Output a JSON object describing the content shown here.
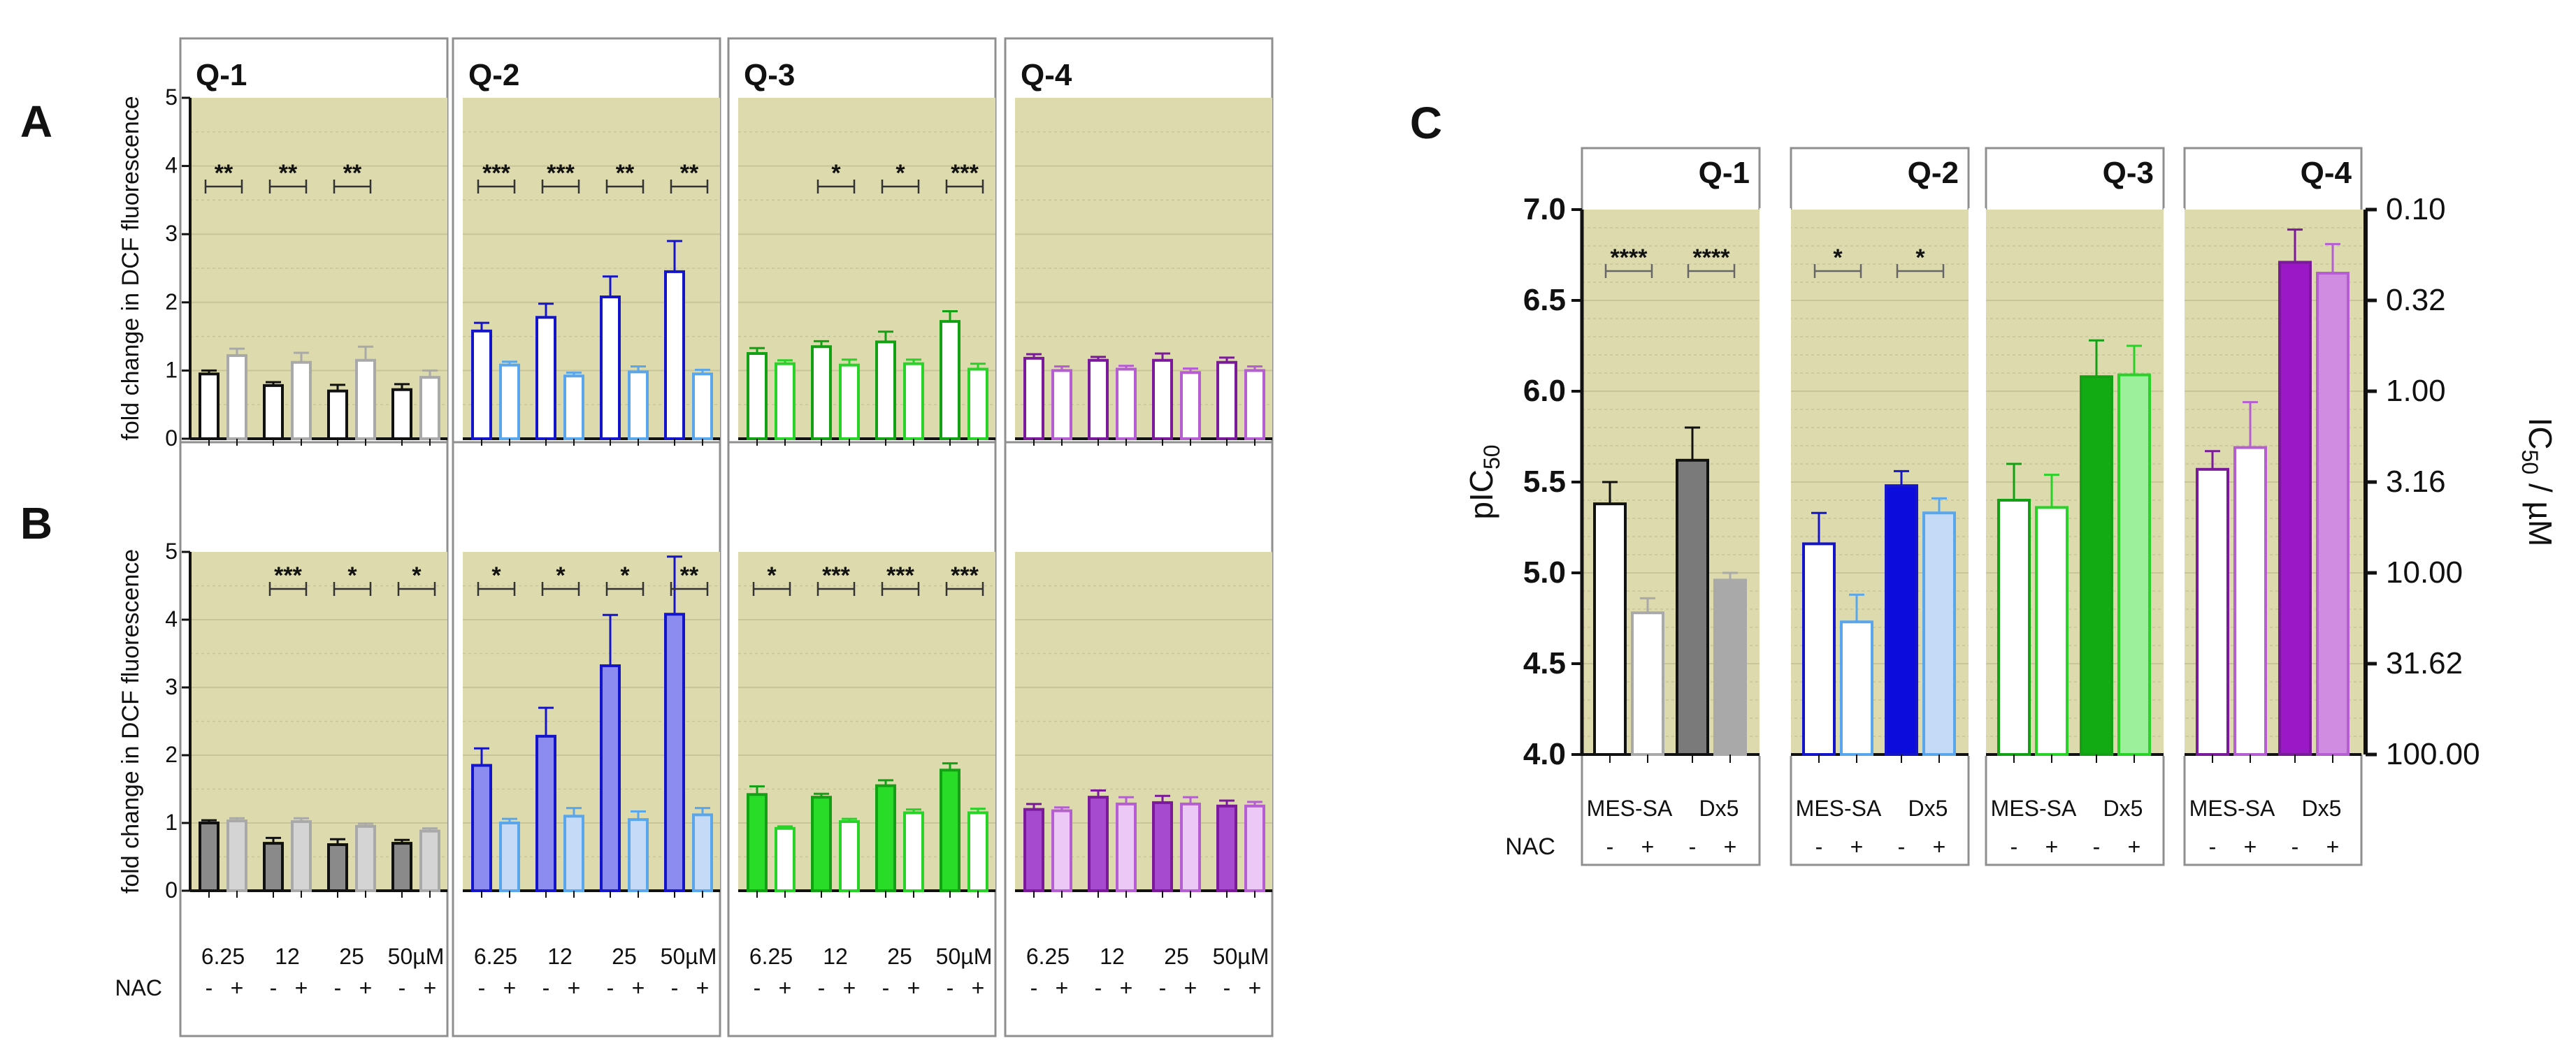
{
  "figure": {
    "panel_labels": [
      "A",
      "B",
      "C"
    ],
    "colors": {
      "background": "#dddbae",
      "grid": "#c9c49a",
      "frame": "#8f8f8f",
      "Q-1": {
        "base": "#111111",
        "nac": "#a9a9a9",
        "fillB_base": "#8a8a8a",
        "fillB_nac": "#d4d4d4",
        "fillC_base": "#7a7a7a",
        "fillC_nac": "#a9a9a9"
      },
      "Q-2": {
        "base": "#1414c8",
        "nac": "#5aa6ec",
        "fillB_base": "#8c8cf0",
        "fillB_nac": "#c4daf6",
        "fillC_base": "#0c0cdc",
        "fillC_nac": "#c4daf6"
      },
      "Q-3": {
        "base": "#14a014",
        "nac": "#28d228",
        "fillB_base": "#28dc28",
        "fillB_nac": "#ffffff",
        "fillC_base": "#13ab13",
        "fillC_nac": "#9cf09c"
      },
      "Q-4": {
        "base": "#7a1a9a",
        "nac": "#b45ed2",
        "fillB_base": "#a64ad0",
        "fillB_nac": "#ecc8f6",
        "fillC_base": "#9b18c6",
        "fillC_nac": "#d08ce0"
      }
    }
  },
  "chart_data": [
    {
      "id": "A",
      "type": "bar",
      "ylabel": "fold change in  DCF fluorescence",
      "ylim": [
        0,
        5
      ],
      "yticks": [
        "0",
        "1",
        "2",
        "3",
        "4",
        "5"
      ],
      "groups": [
        "6.25",
        "12",
        "25",
        "50µM"
      ],
      "nac_row_label": "NAC",
      "nac_signs": [
        "-",
        "+"
      ],
      "panels": [
        {
          "title": "Q-1",
          "values": [
            [
              0.95,
              1.22
            ],
            [
              0.78,
              1.12
            ],
            [
              0.7,
              1.15
            ],
            [
              0.72,
              0.9
            ]
          ],
          "errors": [
            [
              0.05,
              0.1
            ],
            [
              0.05,
              0.14
            ],
            [
              0.09,
              0.2
            ],
            [
              0.08,
              0.1
            ]
          ],
          "sig": [
            "**",
            "**",
            "**",
            ""
          ]
        },
        {
          "title": "Q-2",
          "values": [
            [
              1.58,
              1.08
            ],
            [
              1.78,
              0.92
            ],
            [
              2.08,
              0.98
            ],
            [
              2.45,
              0.95
            ]
          ],
          "errors": [
            [
              0.12,
              0.05
            ],
            [
              0.2,
              0.05
            ],
            [
              0.3,
              0.08
            ],
            [
              0.45,
              0.06
            ]
          ],
          "sig": [
            "***",
            "***",
            "**",
            "**"
          ]
        },
        {
          "title": "Q-3",
          "values": [
            [
              1.25,
              1.1
            ],
            [
              1.35,
              1.08
            ],
            [
              1.42,
              1.1
            ],
            [
              1.72,
              1.02
            ]
          ],
          "errors": [
            [
              0.08,
              0.05
            ],
            [
              0.08,
              0.08
            ],
            [
              0.15,
              0.06
            ],
            [
              0.15,
              0.08
            ]
          ],
          "sig": [
            "",
            "*",
            "*",
            "***"
          ]
        },
        {
          "title": "Q-4",
          "values": [
            [
              1.18,
              1.0
            ],
            [
              1.15,
              1.02
            ],
            [
              1.15,
              0.97
            ],
            [
              1.12,
              1.0
            ]
          ],
          "errors": [
            [
              0.06,
              0.06
            ],
            [
              0.05,
              0.05
            ],
            [
              0.1,
              0.06
            ],
            [
              0.07,
              0.06
            ]
          ],
          "sig": [
            "",
            "",
            "",
            ""
          ]
        }
      ]
    },
    {
      "id": "B",
      "type": "bar",
      "ylabel": "fold change in  DCF fluorescence",
      "ylim": [
        0,
        5
      ],
      "yticks": [
        "0",
        "1",
        "2",
        "3",
        "4",
        "5"
      ],
      "groups": [
        "6.25",
        "12",
        "25",
        "50µM"
      ],
      "nac_row_label": "NAC",
      "nac_signs": [
        "-",
        "+"
      ],
      "panels": [
        {
          "title": "Q-1",
          "values": [
            [
              1.0,
              1.03
            ],
            [
              0.7,
              1.02
            ],
            [
              0.68,
              0.95
            ],
            [
              0.7,
              0.88
            ]
          ],
          "errors": [
            [
              0.04,
              0.04
            ],
            [
              0.08,
              0.05
            ],
            [
              0.08,
              0.04
            ],
            [
              0.05,
              0.04
            ]
          ],
          "sig": [
            "",
            "***",
            "*",
            "*"
          ]
        },
        {
          "title": "Q-2",
          "values": [
            [
              1.85,
              1.0
            ],
            [
              2.28,
              1.1
            ],
            [
              3.32,
              1.05
            ],
            [
              4.08,
              1.12
            ]
          ],
          "errors": [
            [
              0.25,
              0.06
            ],
            [
              0.42,
              0.12
            ],
            [
              0.75,
              0.12
            ],
            [
              0.85,
              0.1
            ]
          ],
          "sig": [
            "*",
            "*",
            "*",
            "**"
          ]
        },
        {
          "title": "Q-3",
          "values": [
            [
              1.42,
              0.92
            ],
            [
              1.38,
              1.02
            ],
            [
              1.55,
              1.15
            ],
            [
              1.78,
              1.15
            ]
          ],
          "errors": [
            [
              0.12,
              0.03
            ],
            [
              0.05,
              0.04
            ],
            [
              0.08,
              0.05
            ],
            [
              0.1,
              0.06
            ]
          ],
          "sig": [
            "*",
            "***",
            "***",
            "***"
          ]
        },
        {
          "title": "Q-4",
          "values": [
            [
              1.2,
              1.18
            ],
            [
              1.38,
              1.28
            ],
            [
              1.3,
              1.28
            ],
            [
              1.25,
              1.25
            ]
          ],
          "errors": [
            [
              0.08,
              0.05
            ],
            [
              0.1,
              0.1
            ],
            [
              0.1,
              0.1
            ],
            [
              0.08,
              0.06
            ]
          ],
          "sig": [
            "",
            "",
            "",
            ""
          ]
        }
      ]
    },
    {
      "id": "C",
      "type": "bar",
      "ylabel": "pIC",
      "ylabel_sub": "50",
      "y2label": "IC",
      "y2label_sub": "50",
      "y2label_unit": " / µM",
      "ylim": [
        4.0,
        7.0
      ],
      "yticks": [
        "4.0",
        "4.5",
        "5.0",
        "5.5",
        "6.0",
        "6.5",
        "7.0"
      ],
      "y2ticks": [
        "100.00",
        "31.62",
        "10.00",
        "3.16",
        "1.00",
        "0.32",
        "0.10"
      ],
      "groups": [
        "MES-SA",
        "Dx5"
      ],
      "nac_row_label": "NAC",
      "nac_signs": [
        "-",
        "+"
      ],
      "panels": [
        {
          "title": "Q-1",
          "values": [
            5.38,
            4.78,
            5.62,
            4.96
          ],
          "errors": [
            0.12,
            0.08,
            0.18,
            0.04
          ],
          "sig": [
            "****",
            "****"
          ]
        },
        {
          "title": "Q-2",
          "values": [
            5.16,
            4.73,
            5.48,
            5.33
          ],
          "errors": [
            0.17,
            0.15,
            0.08,
            0.08
          ],
          "sig": [
            "*",
            "*"
          ]
        },
        {
          "title": "Q-3",
          "values": [
            5.4,
            5.36,
            6.08,
            6.09
          ],
          "errors": [
            0.2,
            0.18,
            0.2,
            0.16
          ],
          "sig": [
            "",
            ""
          ]
        },
        {
          "title": "Q-4",
          "values": [
            5.57,
            5.69,
            6.71,
            6.65
          ],
          "errors": [
            0.1,
            0.25,
            0.18,
            0.16
          ],
          "sig": [
            "",
            ""
          ]
        }
      ]
    }
  ]
}
